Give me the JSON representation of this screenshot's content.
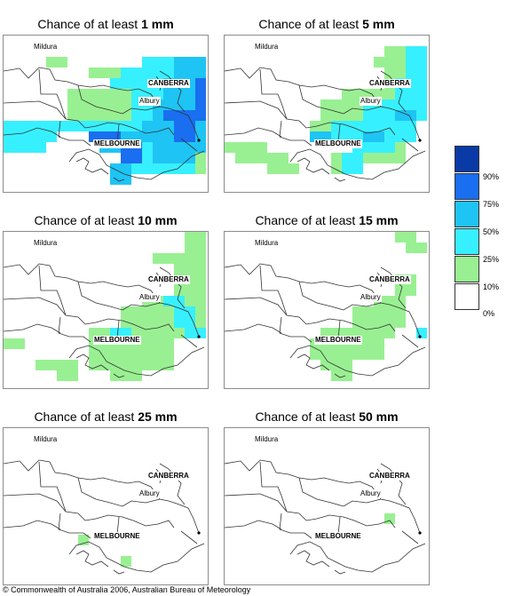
{
  "panels": [
    {
      "prefix": "Chance of at least ",
      "amount": "1 mm",
      "zones": [
        {
          "level": 1,
          "cells": [
            [
              4,
              2,
              2,
              1
            ],
            [
              8,
              3,
              3,
              1
            ],
            [
              14,
              2,
              4,
              1
            ],
            [
              12,
              3,
              7,
              1
            ],
            [
              11,
              4,
              8,
              1
            ],
            [
              6,
              5,
              13,
              3
            ],
            [
              0,
              8,
              19,
              1
            ],
            [
              0,
              9,
              4,
              1
            ],
            [
              12,
              9,
              7,
              1
            ],
            [
              0,
              10,
              3,
              1
            ],
            [
              13,
              10,
              6,
              1
            ],
            [
              11,
              11,
              8,
              2
            ]
          ]
        },
        {
          "level": 2,
          "cells": [
            [
              13,
              2,
              4,
              1
            ],
            [
              11,
              3,
              7,
              1
            ],
            [
              10,
              4,
              8,
              1
            ],
            [
              12,
              5,
              7,
              3
            ],
            [
              0,
              8,
              19,
              1
            ],
            [
              0,
              9,
              5,
              1
            ],
            [
              12,
              9,
              7,
              1
            ],
            [
              0,
              10,
              4,
              1
            ],
            [
              13,
              10,
              6,
              1
            ],
            [
              12,
              11,
              6,
              2
            ]
          ]
        },
        {
          "level": 3,
          "cells": [
            [
              16,
              2,
              3,
              2
            ],
            [
              15,
              4,
              3,
              2
            ],
            [
              14,
              6,
              5,
              2
            ],
            [
              13,
              8,
              6,
              1
            ],
            [
              13,
              9,
              6,
              1
            ],
            [
              9,
              9,
              4,
              2
            ],
            [
              14,
              10,
              5,
              1
            ],
            [
              10,
              12,
              2,
              2
            ],
            [
              14,
              11,
              4,
              1
            ]
          ]
        },
        {
          "level": 4,
          "cells": [
            [
              18,
              4,
              1,
              3
            ],
            [
              15,
              7,
              4,
              1
            ],
            [
              16,
              8,
              2,
              2
            ],
            [
              8,
              9,
              3,
              1
            ],
            [
              11,
              10,
              2,
              2
            ]
          ]
        }
      ]
    },
    {
      "prefix": "Chance of at least ",
      "amount": "5 mm",
      "zones": [
        {
          "level": 1,
          "cells": [
            [
              15,
              1,
              2,
              1
            ],
            [
              14,
              2,
              5,
              1
            ],
            [
              15,
              3,
              4,
              3
            ],
            [
              11,
              5,
              8,
              2
            ],
            [
              9,
              6,
              10,
              2
            ],
            [
              8,
              8,
              9,
              1
            ],
            [
              0,
              10,
              4,
              1
            ],
            [
              1,
              11,
              5,
              1
            ],
            [
              13,
              10,
              4,
              2
            ],
            [
              10,
              11,
              2,
              2
            ],
            [
              4,
              12,
              3,
              1
            ]
          ]
        },
        {
          "level": 2,
          "cells": [
            [
              17,
              1,
              2,
              3
            ],
            [
              16,
              4,
              3,
              2
            ],
            [
              13,
              6,
              6,
              2
            ],
            [
              10,
              8,
              8,
              2
            ],
            [
              8,
              9,
              2,
              1
            ],
            [
              12,
              10,
              4,
              1
            ],
            [
              11,
              11,
              2,
              2
            ]
          ]
        },
        {
          "level": 3,
          "cells": [
            [
              16,
              7,
              2,
              1
            ],
            [
              8,
              9,
              2,
              1
            ],
            [
              13,
              9,
              2,
              1
            ]
          ]
        }
      ]
    },
    {
      "prefix": "Chance of at least ",
      "amount": "10 mm",
      "zones": [
        {
          "level": 1,
          "cells": [
            [
              17,
              0,
              2,
              2
            ],
            [
              14,
              2,
              5,
              1
            ],
            [
              16,
              3,
              3,
              3
            ],
            [
              13,
              6,
              6,
              2
            ],
            [
              11,
              7,
              8,
              2
            ],
            [
              8,
              9,
              11,
              1
            ],
            [
              0,
              10,
              2,
              1
            ],
            [
              8,
              10,
              8,
              3
            ],
            [
              3,
              12,
              4,
              1
            ],
            [
              10,
              13,
              3,
              1
            ],
            [
              5,
              13,
              2,
              1
            ]
          ]
        },
        {
          "level": 2,
          "cells": [
            [
              15,
              6,
              2,
              1
            ],
            [
              16,
              7,
              2,
              2
            ],
            [
              17,
              9,
              2,
              1
            ],
            [
              10,
              9,
              2,
              1
            ]
          ]
        }
      ]
    },
    {
      "prefix": "Chance of at least ",
      "amount": "15 mm",
      "zones": [
        {
          "level": 1,
          "cells": [
            [
              16,
              0,
              2,
              1
            ],
            [
              17,
              1,
              2,
              1
            ],
            [
              16,
              4,
              2,
              2
            ],
            [
              14,
              6,
              3,
              1
            ],
            [
              12,
              7,
              5,
              2
            ],
            [
              9,
              9,
              7,
              1
            ],
            [
              8,
              10,
              7,
              2
            ],
            [
              9,
              12,
              3,
              1
            ],
            [
              10,
              13,
              2,
              1
            ]
          ]
        },
        {
          "level": 2,
          "cells": [
            [
              18,
              9,
              1,
              1
            ]
          ]
        }
      ]
    },
    {
      "prefix": "Chance of at least ",
      "amount": "25 mm",
      "zones": [
        {
          "level": 1,
          "cells": [
            [
              7,
              10,
              1,
              1
            ],
            [
              11,
              12,
              1,
              1
            ]
          ]
        }
      ]
    },
    {
      "prefix": "Chance of at least ",
      "amount": "50 mm",
      "zones": [
        {
          "level": 1,
          "cells": [
            [
              15,
              8,
              1,
              1
            ]
          ]
        }
      ]
    }
  ],
  "map_labels": {
    "mildura": "Mildura",
    "canberra": "CANBERRA",
    "albury": "Albury",
    "melbourne": "MELBOURNE"
  },
  "legend": {
    "ticks": [
      "90%",
      "75%",
      "50%",
      "25%",
      "10%",
      "0%"
    ],
    "colors": [
      "#0a3aa6",
      "#1a6ef0",
      "#1ec4f4",
      "#37f0ff",
      "#99f092",
      "#ffffff"
    ]
  },
  "copyright": "© Commonwealth of Australia 2006, Australian Bureau of Meteorology"
}
